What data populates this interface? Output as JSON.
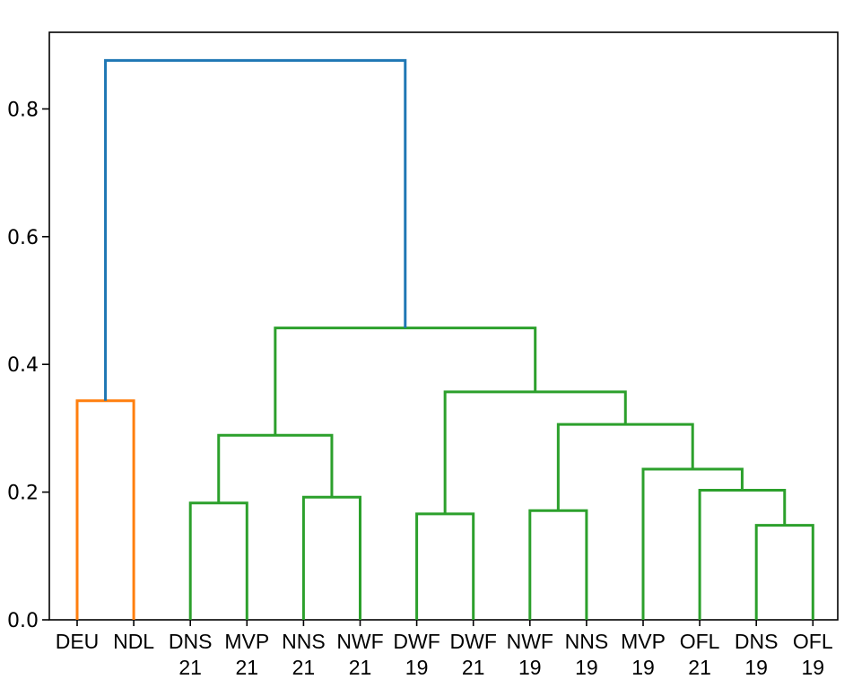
{
  "chart_data": {
    "type": "dendrogram",
    "ylim": [
      0,
      0.92
    ],
    "yticks": [
      0.0,
      0.2,
      0.4,
      0.6,
      0.8
    ],
    "ytick_labels": [
      "0.0",
      "0.2",
      "0.4",
      "0.6",
      "0.8"
    ],
    "leaves": [
      {
        "line1": "DEU",
        "line2": ""
      },
      {
        "line1": "NDL",
        "line2": ""
      },
      {
        "line1": "DNS",
        "line2": "21"
      },
      {
        "line1": "MVP",
        "line2": "21"
      },
      {
        "line1": "NNS",
        "line2": "21"
      },
      {
        "line1": "NWF",
        "line2": "21"
      },
      {
        "line1": "DWF",
        "line2": "19"
      },
      {
        "line1": "DWF",
        "line2": "21"
      },
      {
        "line1": "NWF",
        "line2": "19"
      },
      {
        "line1": "NNS",
        "line2": "19"
      },
      {
        "line1": "MVP",
        "line2": "19"
      },
      {
        "line1": "OFL",
        "line2": "21"
      },
      {
        "line1": "DNS",
        "line2": "19"
      },
      {
        "line1": "OFL",
        "line2": "19"
      }
    ],
    "merges": [
      {
        "id": "m0",
        "left": 0,
        "right": 1,
        "height": 0.343,
        "color": "orange"
      },
      {
        "id": "m1",
        "left": 2,
        "right": 3,
        "height": 0.183,
        "color": "green"
      },
      {
        "id": "m2",
        "left": 4,
        "right": 5,
        "height": 0.192,
        "color": "green"
      },
      {
        "id": "m3",
        "left": "m1",
        "right": "m2",
        "height": 0.289,
        "color": "green"
      },
      {
        "id": "m4",
        "left": 6,
        "right": 7,
        "height": 0.166,
        "color": "green"
      },
      {
        "id": "m5",
        "left": 8,
        "right": 9,
        "height": 0.171,
        "color": "green"
      },
      {
        "id": "m6",
        "left": 12,
        "right": 13,
        "height": 0.148,
        "color": "green"
      },
      {
        "id": "m7",
        "left": 11,
        "right": "m6",
        "height": 0.203,
        "color": "green"
      },
      {
        "id": "m8",
        "left": 10,
        "right": "m7",
        "height": 0.236,
        "color": "green"
      },
      {
        "id": "m9",
        "left": "m5",
        "right": "m8",
        "height": 0.306,
        "color": "green"
      },
      {
        "id": "m10",
        "left": "m4",
        "right": "m9",
        "height": 0.357,
        "color": "green"
      },
      {
        "id": "m11",
        "left": "m3",
        "right": "m10",
        "height": 0.457,
        "color": "green"
      },
      {
        "id": "m12",
        "left": "m0",
        "right": "m11",
        "height": 0.876,
        "color": "blue"
      }
    ],
    "colors": {
      "blue": "#1f77b4",
      "orange": "#ff7f0e",
      "green": "#2ca02c"
    },
    "grid": false
  }
}
